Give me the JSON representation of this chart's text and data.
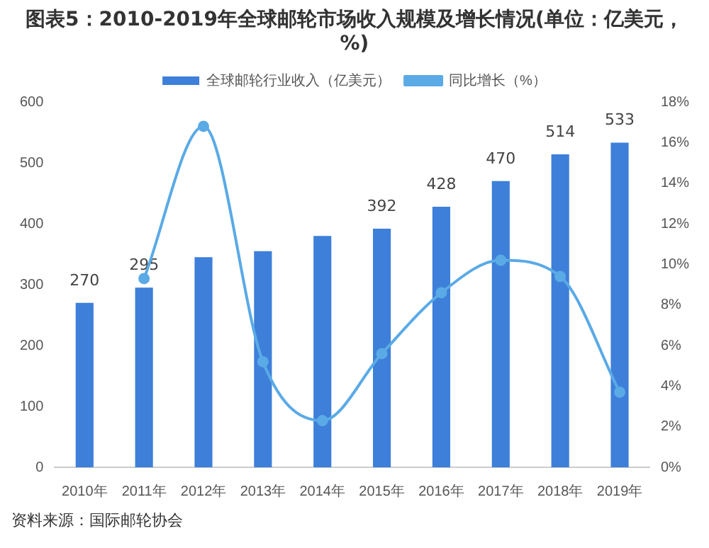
{
  "chart_data": {
    "type": "bar",
    "title": "图表5：2010-2019年全球邮轮市场收入规模及增长情况(单位：亿美元，%)",
    "categories": [
      "2010年",
      "2011年",
      "2012年",
      "2013年",
      "2014年",
      "2015年",
      "2016年",
      "2017年",
      "2018年",
      "2019年"
    ],
    "series": [
      {
        "name": "全球邮轮行业收入（亿美元）",
        "color": "#3d7fd9",
        "values": [
          270,
          295,
          345,
          355,
          380,
          392,
          428,
          470,
          514,
          533
        ],
        "value_labels": [
          "270",
          "295",
          null,
          null,
          null,
          "392",
          "428",
          "470",
          "514",
          "533"
        ]
      },
      {
        "name": "同比增长（%）",
        "type": "line",
        "axis": "y2",
        "color": "#5aaae6",
        "values": [
          null,
          9.3,
          16.8,
          5.2,
          2.3,
          5.6,
          8.6,
          10.2,
          9.4,
          3.7
        ]
      }
    ],
    "ylim": [
      0,
      600
    ],
    "yticks": [
      0,
      100,
      200,
      300,
      400,
      500,
      600
    ],
    "y2lim": [
      0,
      18
    ],
    "y2ticks": [
      {
        "value": 0,
        "label": "0%"
      },
      {
        "value": 2,
        "label": "2%"
      },
      {
        "value": 4,
        "label": "4%"
      },
      {
        "value": 6,
        "label": "6%"
      },
      {
        "value": 8,
        "label": "8%"
      },
      {
        "value": 10,
        "label": "10%"
      },
      {
        "value": 12,
        "label": "12%"
      },
      {
        "value": 14,
        "label": "14%"
      },
      {
        "value": 16,
        "label": "16%"
      },
      {
        "value": 18,
        "label": "18%"
      }
    ],
    "grid": false,
    "legend": "top",
    "marker": "circle",
    "annotations": [
      "资料来源：国际邮轮协会"
    ]
  }
}
